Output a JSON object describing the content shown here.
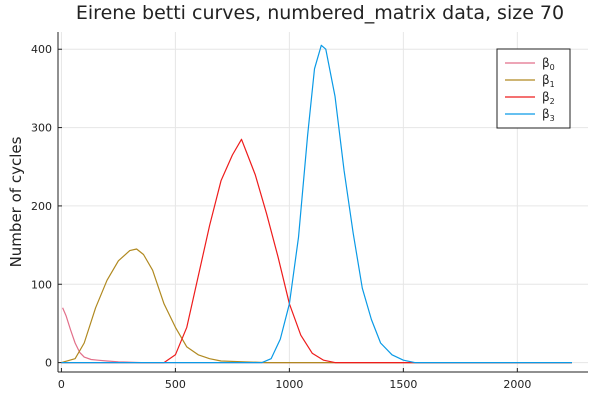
{
  "chart_data": {
    "type": "line",
    "title": "Eirene betti curves, numbered_matrix data, size 70",
    "xlabel": "",
    "ylabel": "Number of cycles",
    "xlim": [
      -15,
      2310
    ],
    "ylim": [
      -12,
      422
    ],
    "xticks": [
      0,
      500,
      1000,
      1500,
      2000
    ],
    "yticks": [
      0,
      100,
      200,
      300,
      400
    ],
    "grid": true,
    "legend_position": "top-right",
    "series": [
      {
        "name": "β0",
        "legend_main": "β",
        "legend_sub": "0",
        "color": "#e26f8a",
        "points": [
          [
            5,
            70
          ],
          [
            20,
            60
          ],
          [
            40,
            42
          ],
          [
            60,
            25
          ],
          [
            80,
            13
          ],
          [
            100,
            7
          ],
          [
            130,
            4
          ],
          [
            160,
            3
          ],
          [
            200,
            2
          ],
          [
            250,
            1
          ],
          [
            350,
            0
          ],
          [
            2240,
            0
          ]
        ]
      },
      {
        "name": "β1",
        "legend_main": "β",
        "legend_sub": "1",
        "color": "#b08920",
        "points": [
          [
            0,
            0
          ],
          [
            60,
            5
          ],
          [
            100,
            25
          ],
          [
            150,
            70
          ],
          [
            200,
            105
          ],
          [
            250,
            130
          ],
          [
            300,
            143
          ],
          [
            330,
            145
          ],
          [
            360,
            138
          ],
          [
            400,
            118
          ],
          [
            450,
            75
          ],
          [
            500,
            45
          ],
          [
            550,
            20
          ],
          [
            600,
            10
          ],
          [
            650,
            5
          ],
          [
            700,
            2
          ],
          [
            800,
            1
          ],
          [
            900,
            0
          ],
          [
            2240,
            0
          ]
        ]
      },
      {
        "name": "β2",
        "legend_main": "β",
        "legend_sub": "2",
        "color": "#ee1c1c",
        "points": [
          [
            0,
            0
          ],
          [
            450,
            0
          ],
          [
            500,
            10
          ],
          [
            550,
            45
          ],
          [
            600,
            110
          ],
          [
            650,
            175
          ],
          [
            700,
            232
          ],
          [
            750,
            265
          ],
          [
            790,
            285
          ],
          [
            810,
            270
          ],
          [
            850,
            240
          ],
          [
            900,
            190
          ],
          [
            950,
            135
          ],
          [
            1000,
            75
          ],
          [
            1050,
            35
          ],
          [
            1100,
            12
          ],
          [
            1150,
            3
          ],
          [
            1200,
            0
          ],
          [
            2240,
            0
          ]
        ]
      },
      {
        "name": "β3",
        "legend_main": "β",
        "legend_sub": "3",
        "color": "#0a9ae6",
        "points": [
          [
            0,
            0
          ],
          [
            880,
            0
          ],
          [
            920,
            5
          ],
          [
            960,
            30
          ],
          [
            1000,
            75
          ],
          [
            1040,
            160
          ],
          [
            1080,
            290
          ],
          [
            1110,
            375
          ],
          [
            1140,
            405
          ],
          [
            1160,
            400
          ],
          [
            1200,
            340
          ],
          [
            1240,
            245
          ],
          [
            1280,
            165
          ],
          [
            1320,
            95
          ],
          [
            1360,
            55
          ],
          [
            1400,
            25
          ],
          [
            1450,
            10
          ],
          [
            1500,
            3
          ],
          [
            1550,
            0
          ],
          [
            2240,
            0
          ]
        ]
      }
    ]
  }
}
